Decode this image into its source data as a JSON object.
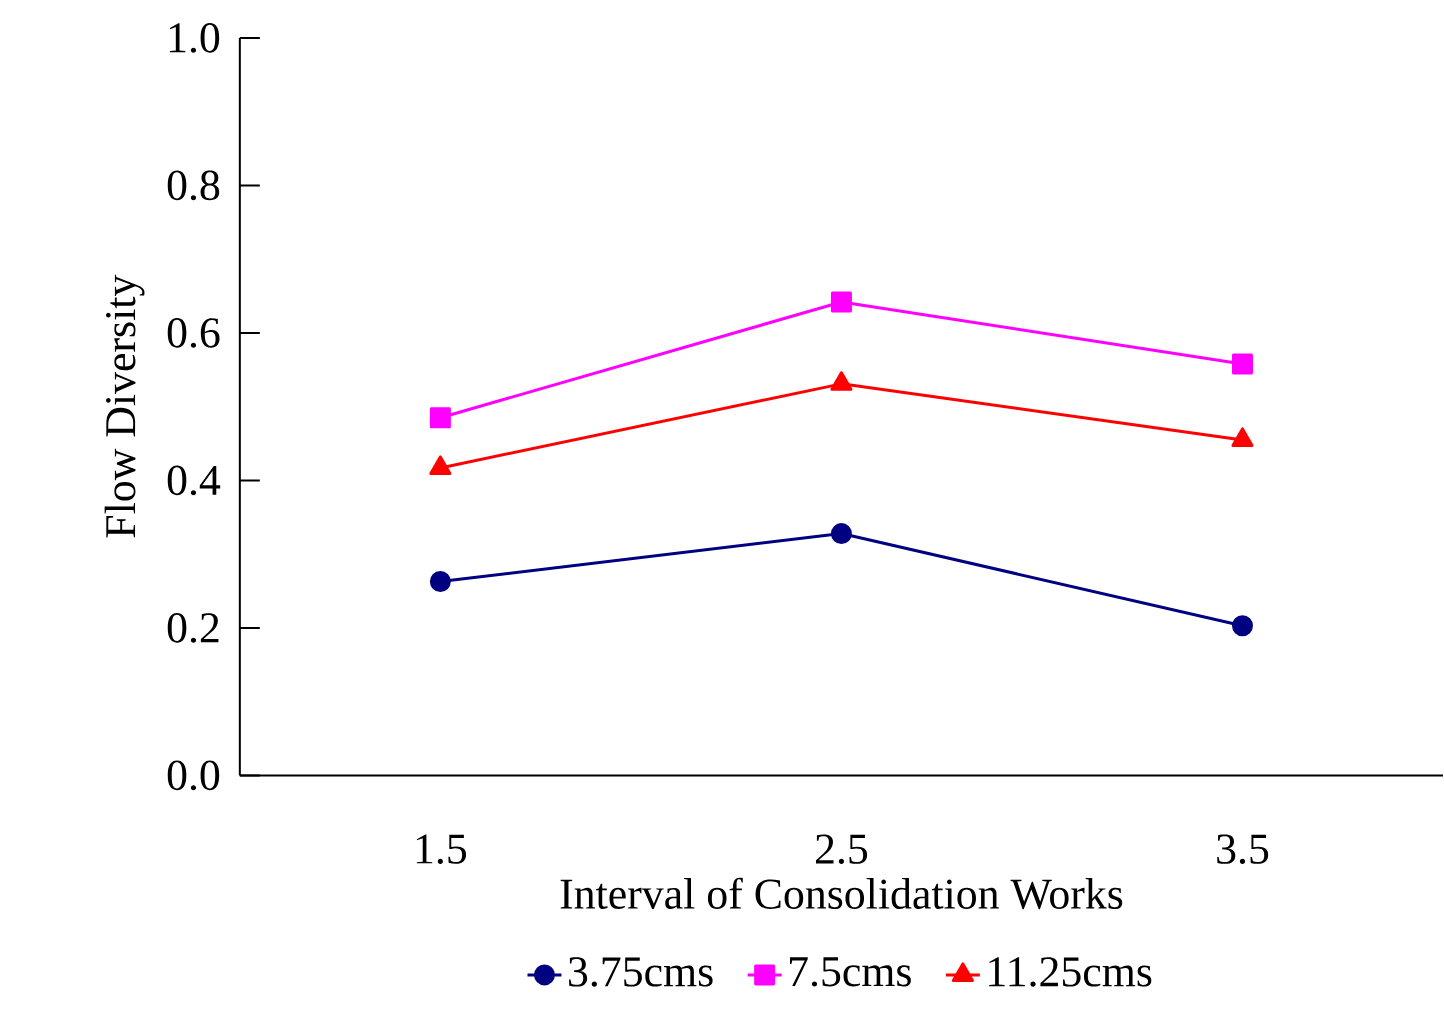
{
  "chart_data": {
    "type": "line",
    "xlabel": "Interval of Consolidation Works",
    "ylabel": "Flow Diversity",
    "categories": [
      "1.5",
      "2.5",
      "3.5"
    ],
    "ylim": [
      0,
      1
    ],
    "yticks": [
      {
        "value": 0,
        "label": "0.0"
      },
      {
        "value": 0.2,
        "label": "0.2"
      },
      {
        "value": 0.4,
        "label": "0.4"
      },
      {
        "value": 0.6,
        "label": "0.6"
      },
      {
        "value": 0.8,
        "label": "0.8"
      },
      {
        "value": 1,
        "label": "1.0"
      }
    ],
    "grid": false,
    "legend": "bottom",
    "line_style": "solid",
    "series": [
      {
        "name": "3.75cms",
        "color": "#000080",
        "marker": "circle",
        "values": [
          0.263,
          0.328,
          0.203
        ]
      },
      {
        "name": "7.5cms",
        "color": "#ff00ff",
        "marker": "square",
        "values": [
          0.485,
          0.642,
          0.558
        ]
      },
      {
        "name": "11.25cms",
        "color": "#ff0000",
        "marker": "triangle",
        "values": [
          0.417,
          0.531,
          0.455
        ]
      }
    ]
  }
}
